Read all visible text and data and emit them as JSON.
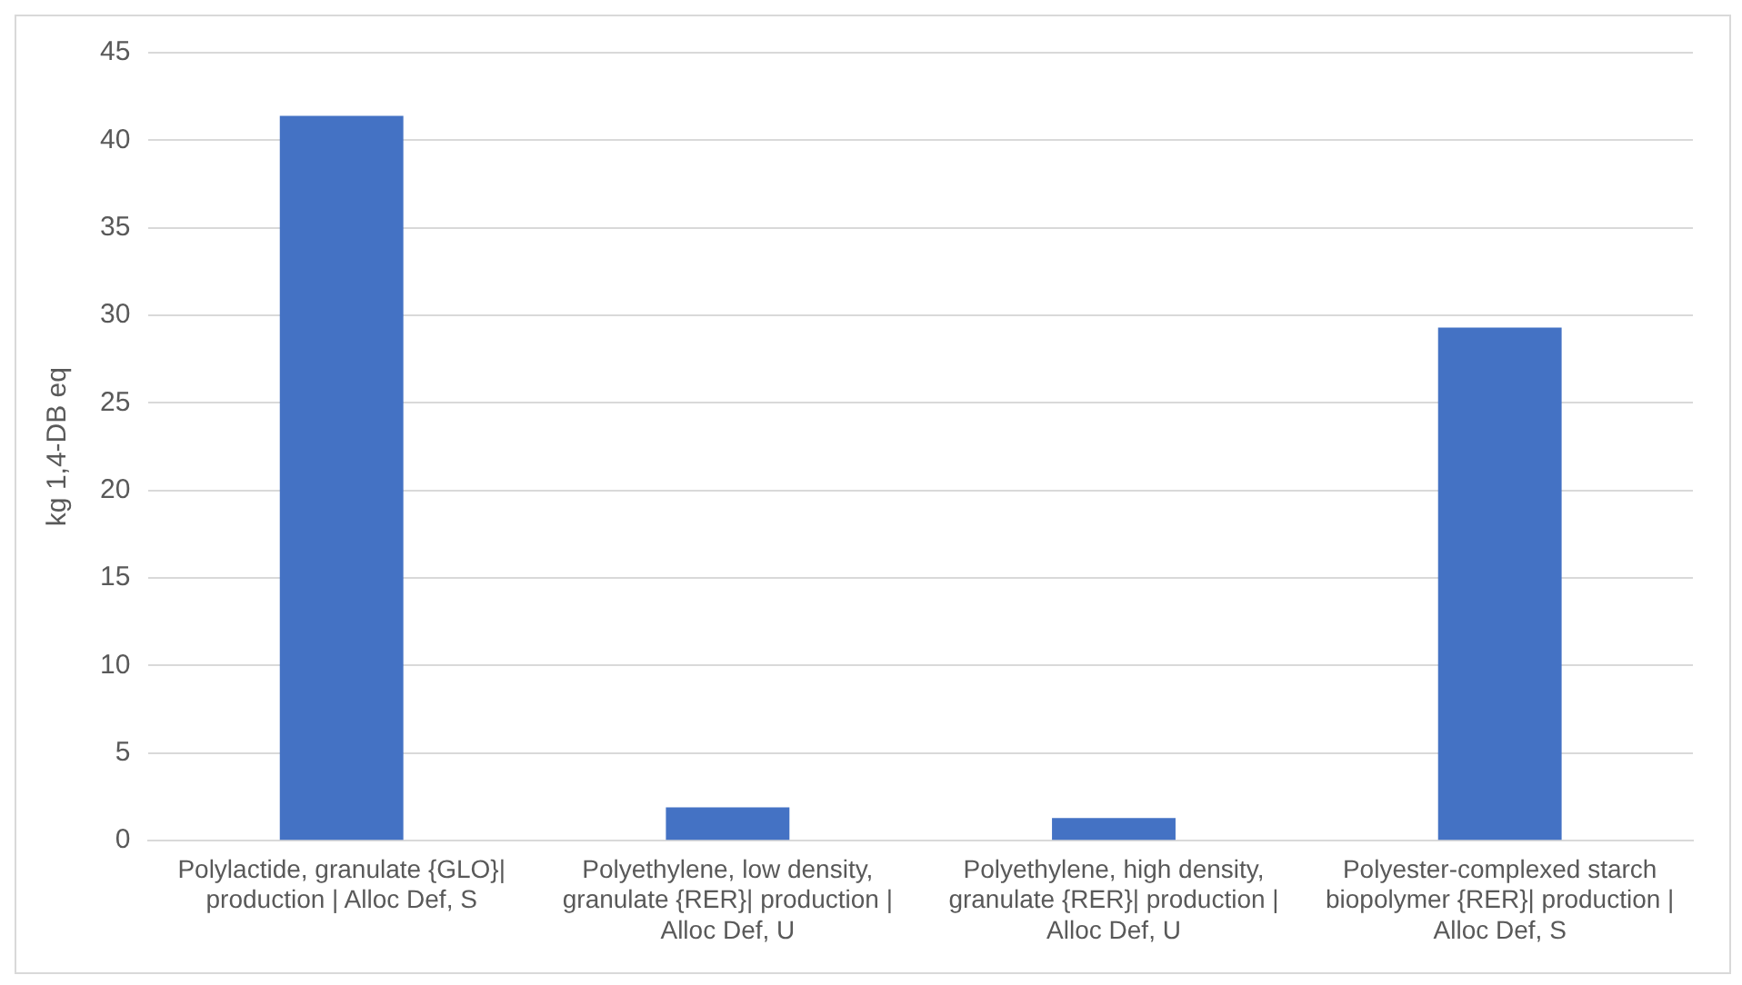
{
  "chart_data": {
    "type": "bar",
    "ylabel": "kg 1,4-DB eq",
    "categories": [
      "Polylactide, granulate {GLO}| production | Alloc Def, S",
      "Polyethylene, low density, granulate {RER}| production | Alloc Def, U",
      "Polyethylene, high density, granulate {RER}| production | Alloc Def, U",
      "Polyester-complexed starch biopolymer {RER}| production | Alloc Def, S"
    ],
    "values": [
      41.4,
      1.9,
      1.3,
      29.3
    ],
    "color": "#4472c4",
    "ylim": [
      0,
      45
    ],
    "yticks": [
      0,
      5,
      10,
      15,
      20,
      25,
      30,
      35,
      40,
      45
    ],
    "grid": "y",
    "legend": false
  }
}
